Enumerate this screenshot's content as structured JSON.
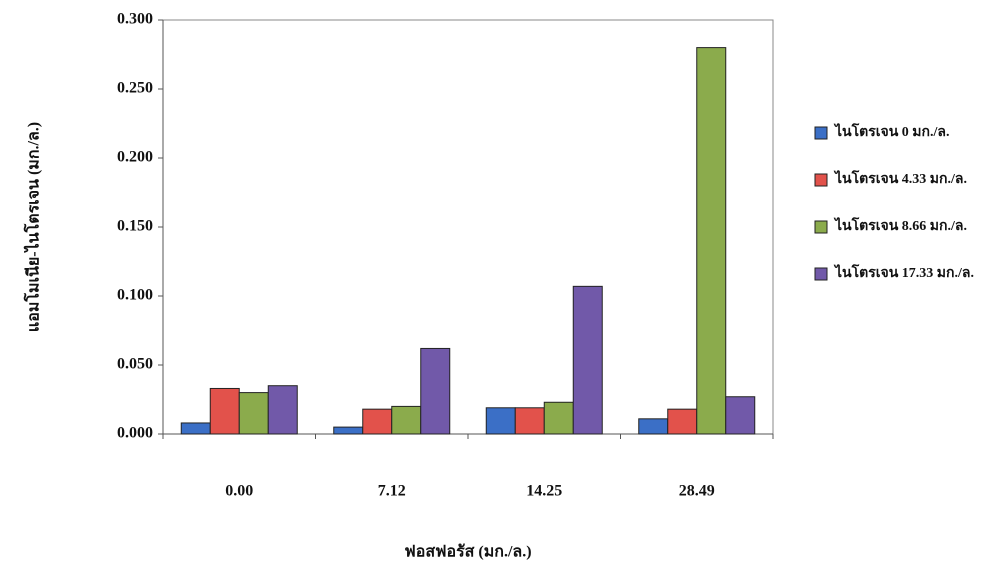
{
  "chart_data": {
    "type": "bar",
    "x_label": "ฟอสฟอรัส (มก./ล.)",
    "y_label": "แอมโมเนีย-ไนโตรเจน (มก./ล.)",
    "categories": [
      "0.00",
      "7.12",
      "14.25",
      "28.49"
    ],
    "series": [
      {
        "name": "ไนโตรเจน 0 มก./ล.",
        "color": "#3b6fc6",
        "values": [
          0.008,
          0.005,
          0.019,
          0.011
        ]
      },
      {
        "name": "ไนโตรเจน 4.33 มก./ล.",
        "color": "#e2524b",
        "values": [
          0.033,
          0.018,
          0.019,
          0.018
        ]
      },
      {
        "name": "ไนโตรเจน 8.66 มก./ล.",
        "color": "#8bab4c",
        "values": [
          0.03,
          0.02,
          0.023,
          0.28
        ]
      },
      {
        "name": "ไนโตรเจน 17.33 มก./ล.",
        "color": "#7159a9",
        "values": [
          0.035,
          0.062,
          0.107,
          0.027
        ]
      }
    ],
    "ylim": [
      0,
      0.3
    ],
    "yticks": [
      {
        "value": 0,
        "label": "0.000"
      },
      {
        "value": 0.05,
        "label": "0.050"
      },
      {
        "value": 0.1,
        "label": "0.100"
      },
      {
        "value": 0.15,
        "label": "0.150"
      },
      {
        "value": 0.2,
        "label": "0.200"
      },
      {
        "value": 0.25,
        "label": "0.250"
      },
      {
        "value": 0.3,
        "label": "0.300"
      }
    ],
    "legend": "right"
  }
}
